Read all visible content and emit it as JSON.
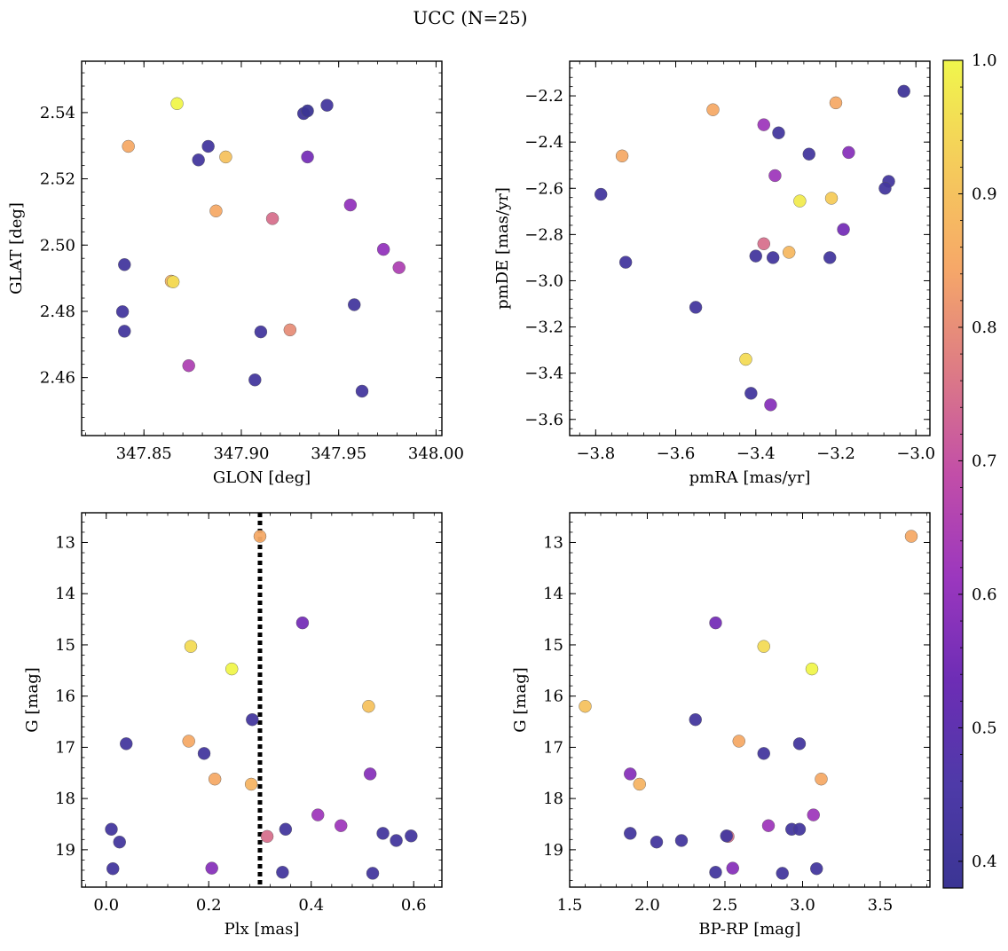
{
  "title": "UCC (N=25)",
  "colorbar": {
    "min": 0.38,
    "max": 1.0,
    "ticks": [
      0.4,
      0.5,
      0.6,
      0.7,
      0.8,
      0.9,
      1.0
    ],
    "tick_labels": [
      "0.4",
      "0.5",
      "0.6",
      "0.7",
      "0.8",
      "0.9",
      "1.0"
    ],
    "colormap": "plasma",
    "stops": [
      "#3b3594",
      "#4e3aa8",
      "#6d2db5",
      "#9b37be",
      "#c24ea8",
      "#dd7b85",
      "#f6a868",
      "#f5cc5b",
      "#f0f64c"
    ]
  },
  "chart_data": [
    {
      "type": "scatter",
      "id": "lonlat",
      "xlabel": "GLON [deg]",
      "ylabel": "GLAT [deg]",
      "xlim": [
        347.818,
        348.003
      ],
      "ylim": [
        2.4425,
        2.5555
      ],
      "xticks": [
        347.85,
        347.9,
        347.95,
        348.0
      ],
      "xtick_labels": [
        "347.85",
        "347.90",
        "347.95",
        "348.00"
      ],
      "yticks": [
        2.46,
        2.48,
        2.5,
        2.52,
        2.54
      ],
      "ytick_labels": [
        "2.46",
        "2.48",
        "2.50",
        "2.52",
        "2.54"
      ],
      "points": [
        {
          "x": 347.867,
          "y": 2.5427,
          "c": 1.0
        },
        {
          "x": 347.842,
          "y": 2.5298,
          "c": 0.85
        },
        {
          "x": 347.892,
          "y": 2.5266,
          "c": 0.9
        },
        {
          "x": 347.887,
          "y": 2.5103,
          "c": 0.85
        },
        {
          "x": 347.864,
          "y": 2.4891,
          "c": 0.87
        },
        {
          "x": 347.865,
          "y": 2.4889,
          "c": 0.95
        },
        {
          "x": 347.916,
          "y": 2.508,
          "c": 0.75
        },
        {
          "x": 347.925,
          "y": 2.4744,
          "c": 0.8
        },
        {
          "x": 347.873,
          "y": 2.4636,
          "c": 0.65
        },
        {
          "x": 347.934,
          "y": 2.5266,
          "c": 0.55
        },
        {
          "x": 347.956,
          "y": 2.5121,
          "c": 0.6
        },
        {
          "x": 347.973,
          "y": 2.4987,
          "c": 0.6
        },
        {
          "x": 347.981,
          "y": 2.4932,
          "c": 0.65
        },
        {
          "x": 347.932,
          "y": 2.5397,
          "c": 0.4
        },
        {
          "x": 347.934,
          "y": 2.5405,
          "c": 0.38
        },
        {
          "x": 347.944,
          "y": 2.5422,
          "c": 0.42
        },
        {
          "x": 347.883,
          "y": 2.5298,
          "c": 0.42
        },
        {
          "x": 347.878,
          "y": 2.5257,
          "c": 0.42
        },
        {
          "x": 347.84,
          "y": 2.4941,
          "c": 0.42
        },
        {
          "x": 347.839,
          "y": 2.4799,
          "c": 0.42
        },
        {
          "x": 347.84,
          "y": 2.474,
          "c": 0.42
        },
        {
          "x": 347.91,
          "y": 2.4738,
          "c": 0.42
        },
        {
          "x": 347.907,
          "y": 2.4593,
          "c": 0.42
        },
        {
          "x": 347.958,
          "y": 2.482,
          "c": 0.42
        },
        {
          "x": 347.962,
          "y": 2.4559,
          "c": 0.42
        }
      ]
    },
    {
      "type": "scatter",
      "id": "pm",
      "xlabel": "pmRA [mas/yr]",
      "ylabel": "pmDE [mas/yr]",
      "xlim": [
        -3.865,
        -2.965
      ],
      "ylim": [
        -3.67,
        -2.05
      ],
      "xticks": [
        -3.8,
        -3.6,
        -3.4,
        -3.2,
        -3.0
      ],
      "xtick_labels": [
        "−3.8",
        "−3.6",
        "−3.4",
        "−3.2",
        "−3.0"
      ],
      "yticks": [
        -3.6,
        -3.4,
        -3.2,
        -3.0,
        -2.8,
        -2.6,
        -2.4,
        -2.2
      ],
      "ytick_labels": [
        "−3.6",
        "−3.4",
        "−3.2",
        "−3.0",
        "−2.8",
        "−2.6",
        "−2.4",
        "−2.2"
      ],
      "points": [
        {
          "x": -3.03,
          "y": -2.18,
          "c": 0.4
        },
        {
          "x": -3.2,
          "y": -2.23,
          "c": 0.85
        },
        {
          "x": -3.507,
          "y": -2.26,
          "c": 0.85
        },
        {
          "x": -3.38,
          "y": -2.325,
          "c": 0.62
        },
        {
          "x": -3.343,
          "y": -2.36,
          "c": 0.42
        },
        {
          "x": -3.734,
          "y": -2.46,
          "c": 0.85
        },
        {
          "x": -3.168,
          "y": -2.445,
          "c": 0.58
        },
        {
          "x": -3.267,
          "y": -2.452,
          "c": 0.42
        },
        {
          "x": -3.352,
          "y": -2.545,
          "c": 0.62
        },
        {
          "x": -3.068,
          "y": -2.57,
          "c": 0.42
        },
        {
          "x": -3.077,
          "y": -2.6,
          "c": 0.42
        },
        {
          "x": -3.787,
          "y": -2.626,
          "c": 0.42
        },
        {
          "x": -3.211,
          "y": -2.643,
          "c": 0.92
        },
        {
          "x": -3.29,
          "y": -2.655,
          "c": 0.98
        },
        {
          "x": -3.181,
          "y": -2.778,
          "c": 0.55
        },
        {
          "x": -3.38,
          "y": -2.84,
          "c": 0.75
        },
        {
          "x": -3.317,
          "y": -2.877,
          "c": 0.88
        },
        {
          "x": -3.4,
          "y": -2.893,
          "c": 0.42
        },
        {
          "x": -3.357,
          "y": -2.9,
          "c": 0.42
        },
        {
          "x": -3.215,
          "y": -2.9,
          "c": 0.42
        },
        {
          "x": -3.725,
          "y": -2.92,
          "c": 0.42
        },
        {
          "x": -3.55,
          "y": -3.115,
          "c": 0.42
        },
        {
          "x": -3.425,
          "y": -3.34,
          "c": 0.95
        },
        {
          "x": -3.412,
          "y": -3.487,
          "c": 0.42
        },
        {
          "x": -3.363,
          "y": -3.537,
          "c": 0.58
        }
      ]
    },
    {
      "type": "scatter",
      "id": "plxg",
      "xlabel": "Plx [mas]",
      "ylabel": "G [mag]",
      "xlim": [
        -0.048,
        0.655
      ],
      "ylim": [
        19.73,
        12.42
      ],
      "xticks": [
        0.0,
        0.2,
        0.4,
        0.6
      ],
      "xtick_labels": [
        "0.0",
        "0.2",
        "0.4",
        "0.6"
      ],
      "yticks": [
        13,
        14,
        15,
        16,
        17,
        18,
        19
      ],
      "ytick_labels": [
        "13",
        "14",
        "15",
        "16",
        "17",
        "18",
        "19"
      ],
      "vline": {
        "x": 0.3
      },
      "points": [
        {
          "x": 0.3,
          "y": 12.88,
          "c": 0.85
        },
        {
          "x": 0.383,
          "y": 14.57,
          "c": 0.55
        },
        {
          "x": 0.165,
          "y": 15.03,
          "c": 0.95
        },
        {
          "x": 0.245,
          "y": 15.47,
          "c": 1.0
        },
        {
          "x": 0.512,
          "y": 16.2,
          "c": 0.9
        },
        {
          "x": 0.285,
          "y": 16.46,
          "c": 0.42
        },
        {
          "x": 0.039,
          "y": 16.93,
          "c": 0.42
        },
        {
          "x": 0.161,
          "y": 16.88,
          "c": 0.85
        },
        {
          "x": 0.191,
          "y": 17.12,
          "c": 0.42
        },
        {
          "x": 0.212,
          "y": 17.62,
          "c": 0.85
        },
        {
          "x": 0.283,
          "y": 17.72,
          "c": 0.87
        },
        {
          "x": 0.515,
          "y": 17.52,
          "c": 0.58
        },
        {
          "x": 0.413,
          "y": 18.32,
          "c": 0.62
        },
        {
          "x": 0.458,
          "y": 18.53,
          "c": 0.62
        },
        {
          "x": 0.314,
          "y": 18.74,
          "c": 0.75
        },
        {
          "x": 0.35,
          "y": 18.6,
          "c": 0.42
        },
        {
          "x": 0.01,
          "y": 18.6,
          "c": 0.42
        },
        {
          "x": 0.026,
          "y": 18.85,
          "c": 0.42
        },
        {
          "x": 0.54,
          "y": 18.68,
          "c": 0.42
        },
        {
          "x": 0.566,
          "y": 18.82,
          "c": 0.42
        },
        {
          "x": 0.595,
          "y": 18.73,
          "c": 0.42
        },
        {
          "x": 0.013,
          "y": 19.37,
          "c": 0.42
        },
        {
          "x": 0.206,
          "y": 19.36,
          "c": 0.58
        },
        {
          "x": 0.344,
          "y": 19.44,
          "c": 0.42
        },
        {
          "x": 0.52,
          "y": 19.46,
          "c": 0.42
        }
      ]
    },
    {
      "type": "scatter",
      "id": "cmd",
      "xlabel": "BP-RP [mag]",
      "ylabel": "G [mag]",
      "xlim": [
        1.5,
        3.82
      ],
      "ylim": [
        19.73,
        12.42
      ],
      "xticks": [
        1.5,
        2.0,
        2.5,
        3.0,
        3.5
      ],
      "xtick_labels": [
        "1.5",
        "2.0",
        "2.5",
        "3.0",
        "3.5"
      ],
      "yticks": [
        13,
        14,
        15,
        16,
        17,
        18,
        19
      ],
      "ytick_labels": [
        "13",
        "14",
        "15",
        "16",
        "17",
        "18",
        "19"
      ],
      "points": [
        {
          "x": 3.7,
          "y": 12.88,
          "c": 0.85
        },
        {
          "x": 2.44,
          "y": 14.57,
          "c": 0.55
        },
        {
          "x": 2.75,
          "y": 15.03,
          "c": 0.95
        },
        {
          "x": 3.06,
          "y": 15.47,
          "c": 1.0
        },
        {
          "x": 1.6,
          "y": 16.2,
          "c": 0.9
        },
        {
          "x": 2.31,
          "y": 16.46,
          "c": 0.42
        },
        {
          "x": 2.98,
          "y": 16.93,
          "c": 0.42
        },
        {
          "x": 2.59,
          "y": 16.88,
          "c": 0.85
        },
        {
          "x": 2.75,
          "y": 17.12,
          "c": 0.42
        },
        {
          "x": 3.12,
          "y": 17.62,
          "c": 0.85
        },
        {
          "x": 1.95,
          "y": 17.72,
          "c": 0.87
        },
        {
          "x": 1.89,
          "y": 17.52,
          "c": 0.58
        },
        {
          "x": 3.07,
          "y": 18.32,
          "c": 0.62
        },
        {
          "x": 2.78,
          "y": 18.53,
          "c": 0.62
        },
        {
          "x": 2.52,
          "y": 18.74,
          "c": 0.75
        },
        {
          "x": 2.93,
          "y": 18.6,
          "c": 0.42
        },
        {
          "x": 2.98,
          "y": 18.6,
          "c": 0.42
        },
        {
          "x": 2.06,
          "y": 18.85,
          "c": 0.42
        },
        {
          "x": 1.89,
          "y": 18.68,
          "c": 0.42
        },
        {
          "x": 2.22,
          "y": 18.82,
          "c": 0.42
        },
        {
          "x": 2.51,
          "y": 18.73,
          "c": 0.42
        },
        {
          "x": 3.09,
          "y": 19.37,
          "c": 0.42
        },
        {
          "x": 2.55,
          "y": 19.36,
          "c": 0.58
        },
        {
          "x": 2.44,
          "y": 19.44,
          "c": 0.42
        },
        {
          "x": 2.87,
          "y": 19.46,
          "c": 0.42
        }
      ]
    }
  ]
}
